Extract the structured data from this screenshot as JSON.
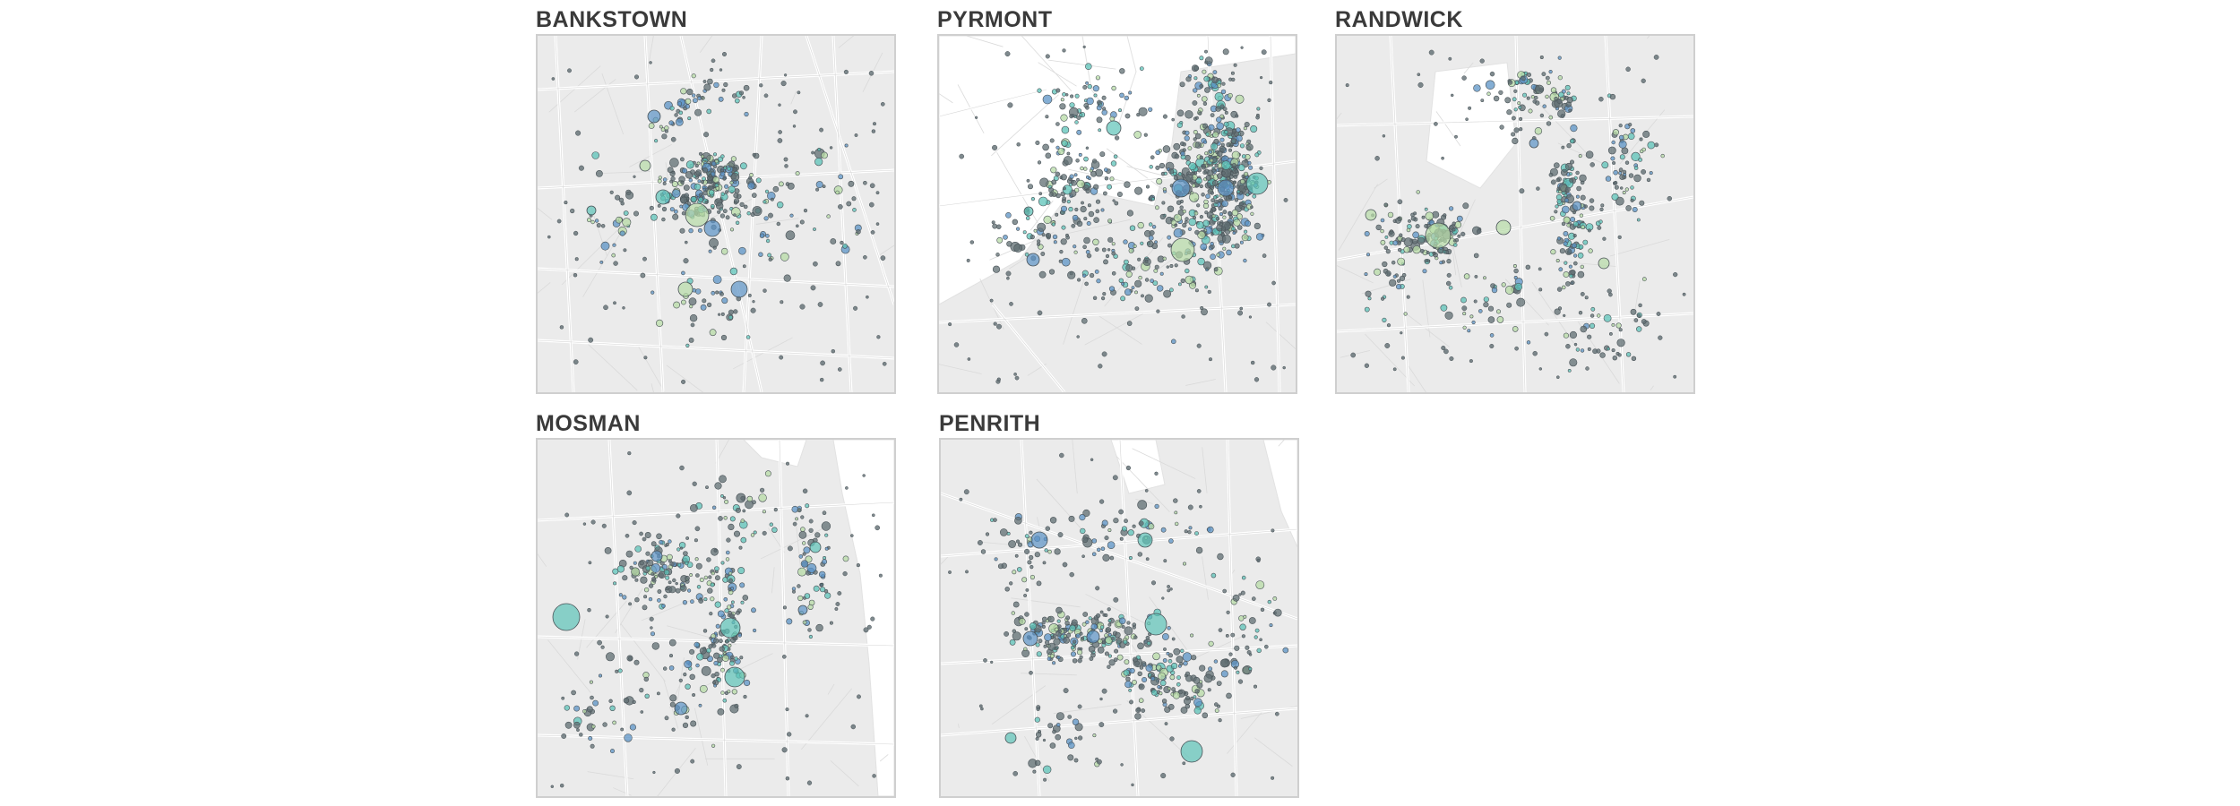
{
  "maps": [
    {
      "id": "bankstown",
      "title": "BANKSTOWN"
    },
    {
      "id": "pyrmont",
      "title": "PYRMONT"
    },
    {
      "id": "randwick",
      "title": "RANDWICK"
    },
    {
      "id": "mosman",
      "title": "MOSMAN"
    },
    {
      "id": "penrith",
      "title": "PENRITH"
    }
  ],
  "legend_colors": {
    "water": "#ffffff",
    "land": "#ebebeb",
    "road": "#ffffff",
    "minor_road": "#dadada",
    "point_stroke": "#4a5358",
    "point_fill_dark": "#5f6d72",
    "bubble_blue": "#5b93c6",
    "bubble_teal": "#5cc3b8",
    "bubble_green": "#b7dba6"
  }
}
